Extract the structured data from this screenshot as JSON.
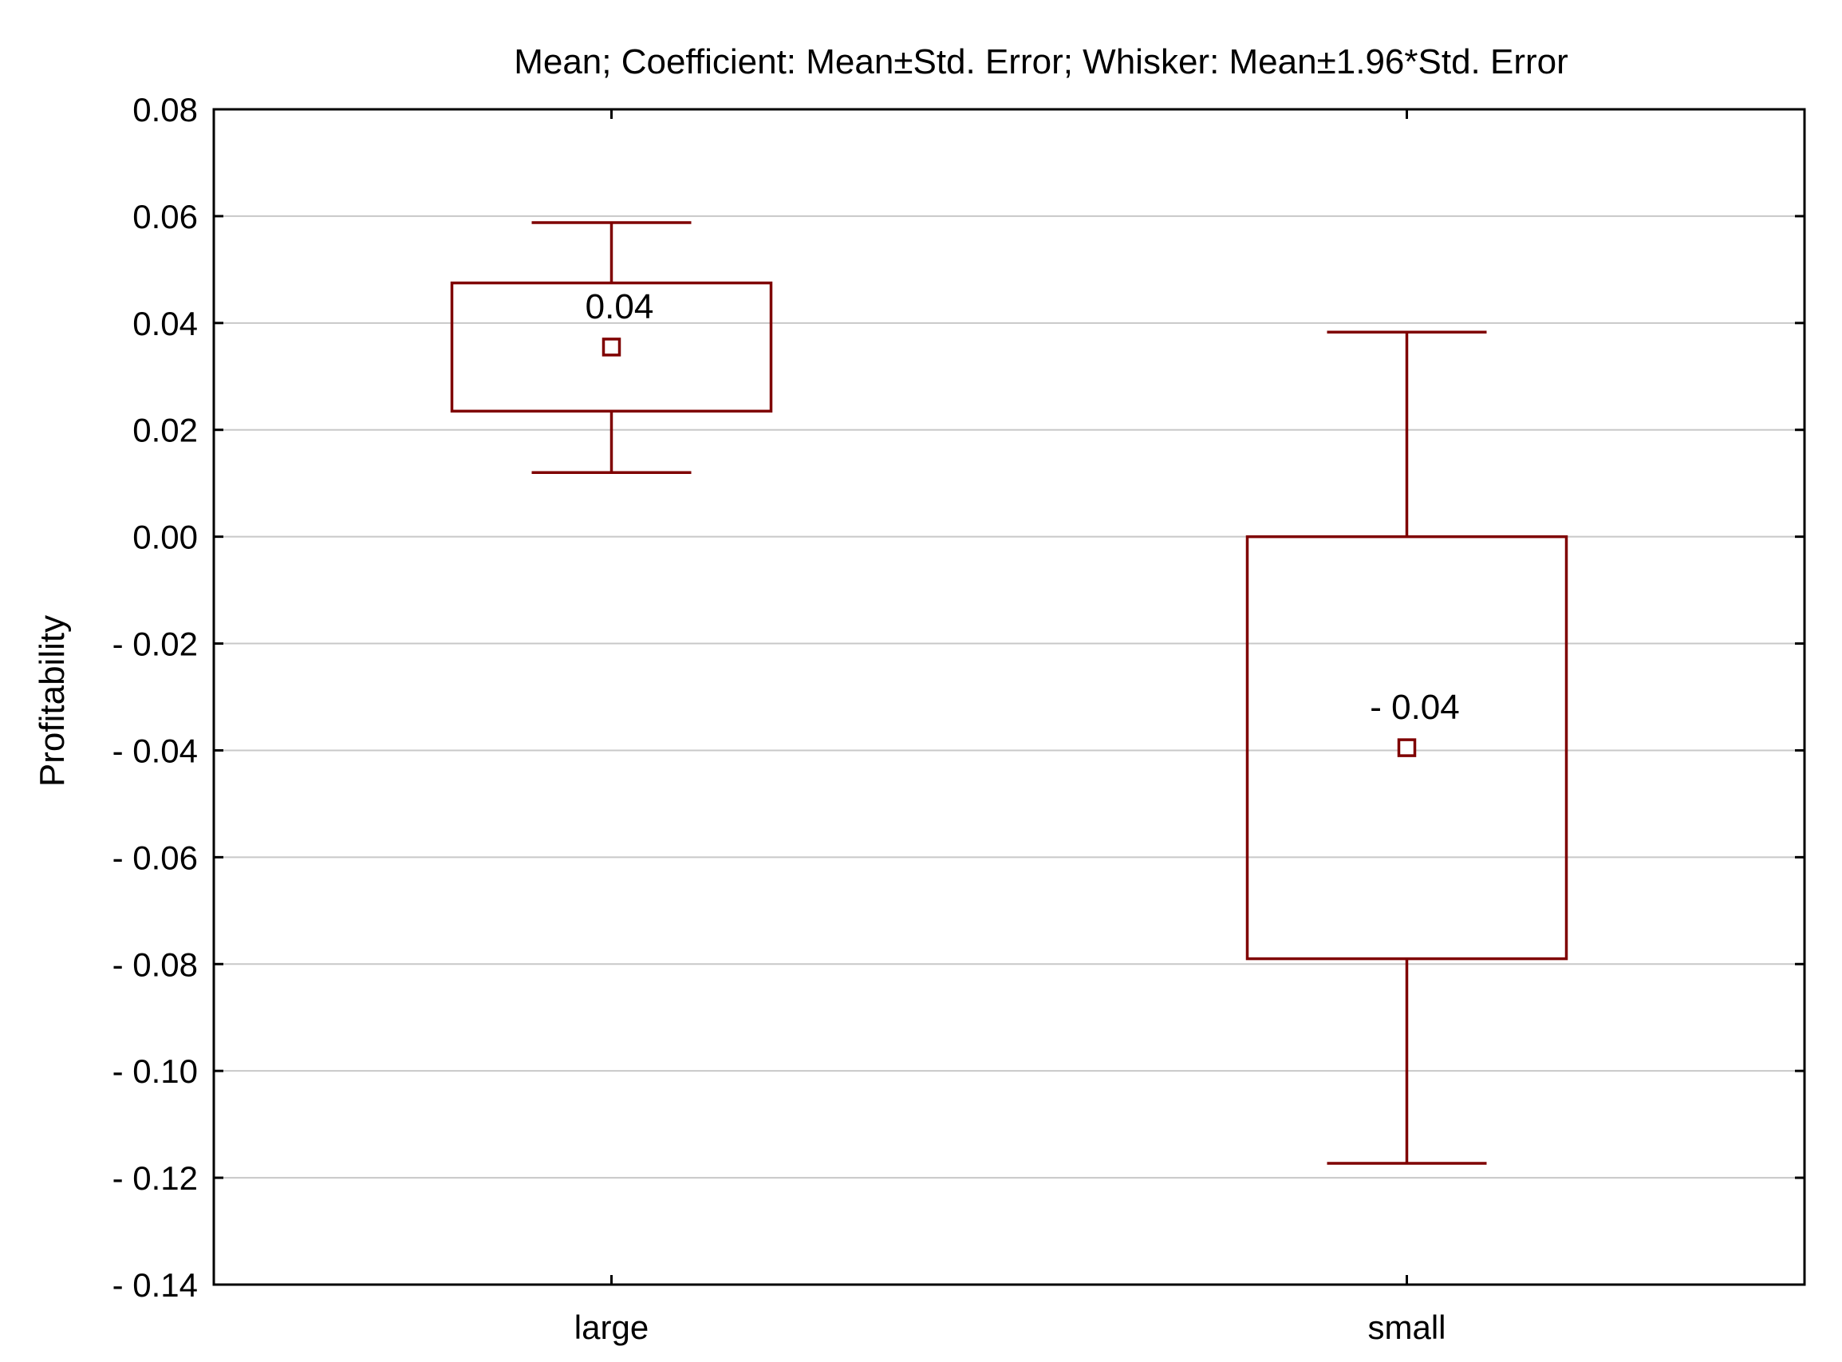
{
  "chart_data": {
    "type": "box",
    "title": "Mean; Coefficient: Mean±Std. Error; Whisker: Mean±1.96*Std. Error",
    "xlabel": "",
    "ylabel": "Profitability",
    "ylim": [
      -0.14,
      0.08
    ],
    "grid": true,
    "y_ticks": [
      0.08,
      0.06,
      0.04,
      0.02,
      0.0,
      -0.02,
      -0.04,
      -0.06,
      -0.08,
      -0.1,
      -0.12,
      -0.14
    ],
    "y_tick_labels": [
      "0.08",
      "0.06",
      "0.04",
      "0.02",
      "0.00",
      "- 0.02",
      "- 0.04",
      "- 0.06",
      "- 0.08",
      "- 0.10",
      "- 0.12",
      "- 0.14"
    ],
    "categories": [
      "large",
      "small"
    ],
    "groups": [
      {
        "category": "large",
        "mean": 0.0355,
        "box_low": 0.0235,
        "box_high": 0.0475,
        "whisker_low": 0.012,
        "whisker_high": 0.0588,
        "label": "0.04"
      },
      {
        "category": "small",
        "mean": -0.0395,
        "box_low": -0.079,
        "box_high": 0.0,
        "whisker_low": -0.1173,
        "whisker_high": 0.0383,
        "label": "- 0.04"
      }
    ],
    "color": "#7f0000"
  }
}
